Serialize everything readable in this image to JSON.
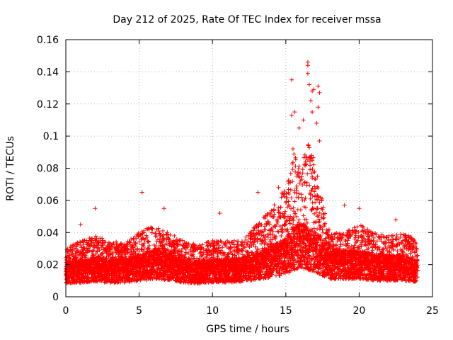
{
  "chart_data": {
    "type": "scatter",
    "title": "Day 212 of 2025, Rate Of TEC Index for receiver mssa",
    "xlabel": "GPS time / hours",
    "ylabel": "ROTI / TECUs",
    "xlim": [
      0,
      25
    ],
    "ylim": [
      0,
      0.16
    ],
    "x_ticks": [
      0,
      5,
      10,
      15,
      20,
      25
    ],
    "x_tick_labels": [
      "0",
      "5",
      "10",
      "15",
      "20",
      "25"
    ],
    "y_ticks": [
      0,
      0.02,
      0.04,
      0.06,
      0.08,
      0.1,
      0.12,
      0.14,
      0.16
    ],
    "y_tick_labels": [
      "0",
      "0.02",
      "0.04",
      "0.06",
      "0.08",
      "0.1",
      "0.12",
      "0.14",
      "0.16"
    ],
    "grid": true,
    "marker": "+",
    "marker_color": "#ff0000",
    "x_range_hours": [
      0,
      24
    ],
    "envelope": {
      "description_hours": [
        0,
        1,
        2,
        3,
        4,
        5,
        6,
        7,
        8,
        9,
        10,
        11,
        12,
        13,
        14,
        15,
        15.5,
        16,
        16.5,
        17,
        17.5,
        18,
        19,
        20,
        21,
        22,
        23,
        24
      ],
      "base_level": [
        0.015,
        0.016,
        0.017,
        0.016,
        0.016,
        0.018,
        0.02,
        0.019,
        0.016,
        0.015,
        0.016,
        0.016,
        0.017,
        0.019,
        0.022,
        0.025,
        0.03,
        0.032,
        0.03,
        0.028,
        0.024,
        0.02,
        0.02,
        0.02,
        0.018,
        0.018,
        0.018,
        0.016
      ],
      "upper_level": [
        0.03,
        0.035,
        0.038,
        0.035,
        0.033,
        0.04,
        0.045,
        0.04,
        0.035,
        0.032,
        0.035,
        0.035,
        0.035,
        0.045,
        0.055,
        0.07,
        0.095,
        0.08,
        0.1,
        0.085,
        0.06,
        0.04,
        0.04,
        0.045,
        0.04,
        0.038,
        0.04,
        0.035
      ]
    },
    "highlighted_points": [
      {
        "x": 5.2,
        "y": 0.065
      },
      {
        "x": 15.4,
        "y": 0.135
      },
      {
        "x": 15.6,
        "y": 0.115
      },
      {
        "x": 15.4,
        "y": 0.113
      },
      {
        "x": 16.5,
        "y": 0.146
      },
      {
        "x": 16.5,
        "y": 0.144
      },
      {
        "x": 16.5,
        "y": 0.139
      },
      {
        "x": 16.6,
        "y": 0.132
      },
      {
        "x": 16.8,
        "y": 0.128
      },
      {
        "x": 16.9,
        "y": 0.129
      },
      {
        "x": 17.2,
        "y": 0.131
      },
      {
        "x": 17.3,
        "y": 0.127
      },
      {
        "x": 17.2,
        "y": 0.118
      },
      {
        "x": 16.7,
        "y": 0.122
      },
      {
        "x": 16.8,
        "y": 0.115
      },
      {
        "x": 17.1,
        "y": 0.108
      },
      {
        "x": 17.3,
        "y": 0.097
      },
      {
        "x": 16.2,
        "y": 0.11
      },
      {
        "x": 15.9,
        "y": 0.105
      },
      {
        "x": 2.0,
        "y": 0.055
      },
      {
        "x": 6.7,
        "y": 0.055
      },
      {
        "x": 19.0,
        "y": 0.057
      },
      {
        "x": 20.0,
        "y": 0.055
      },
      {
        "x": 13.1,
        "y": 0.065
      },
      {
        "x": 14.5,
        "y": 0.068
      },
      {
        "x": 1.0,
        "y": 0.045
      },
      {
        "x": 10.5,
        "y": 0.052
      },
      {
        "x": 22.5,
        "y": 0.048
      }
    ]
  }
}
